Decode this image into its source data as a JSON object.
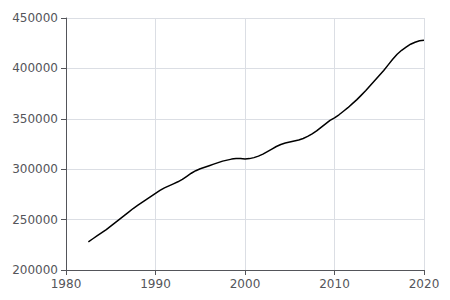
{
  "chart_data": {
    "type": "line",
    "x": [
      1982.5,
      1983.0,
      1983.5,
      1984.0,
      1984.5,
      1985.0,
      1985.5,
      1986.0,
      1986.5,
      1987.0,
      1987.5,
      1988.0,
      1988.5,
      1989.0,
      1989.5,
      1990.0,
      1990.5,
      1991.0,
      1991.5,
      1992.0,
      1992.5,
      1993.0,
      1993.5,
      1994.0,
      1994.5,
      1995.0,
      1995.5,
      1996.0,
      1996.5,
      1997.0,
      1997.5,
      1998.0,
      1998.5,
      1999.0,
      1999.5,
      2000.0,
      2000.5,
      2001.0,
      2001.5,
      2002.0,
      2002.5,
      2003.0,
      2003.5,
      2004.0,
      2004.5,
      2005.0,
      2005.5,
      2006.0,
      2006.5,
      2007.0,
      2007.5,
      2008.0,
      2008.5,
      2009.0,
      2009.5,
      2010.0,
      2010.5,
      2011.0,
      2011.5,
      2012.0,
      2012.5,
      2013.0,
      2013.5,
      2014.0,
      2014.5,
      2015.0,
      2015.5,
      2016.0,
      2016.5,
      2017.0,
      2017.5,
      2018.0,
      2018.5,
      2019.0,
      2019.5,
      2020.0
    ],
    "values": [
      228000,
      231000,
      234000,
      237000,
      240000,
      243500,
      247000,
      250500,
      254000,
      257500,
      261000,
      264000,
      267000,
      270000,
      273000,
      276000,
      279000,
      281500,
      283500,
      285500,
      287500,
      290000,
      293000,
      296000,
      298500,
      300500,
      302000,
      303500,
      305000,
      306500,
      308000,
      309000,
      310000,
      310500,
      310500,
      310000,
      310500,
      311500,
      313000,
      315000,
      317500,
      320000,
      322500,
      324500,
      326000,
      327000,
      328000,
      329000,
      330500,
      332500,
      335000,
      338000,
      341500,
      345000,
      348500,
      351000,
      354000,
      357500,
      361000,
      365000,
      369000,
      373500,
      378000,
      383000,
      388000,
      393000,
      398000,
      403500,
      409000,
      414000,
      418000,
      421000,
      424000,
      426000,
      427500,
      428000
    ],
    "color": "#000000",
    "xlim": [
      1980,
      2020
    ],
    "xticks": [
      1980,
      1990,
      2000,
      2010,
      2020
    ],
    "ylim": [
      200000,
      450000
    ],
    "yticks": [
      200000,
      250000,
      300000,
      350000,
      400000,
      450000
    ],
    "grid": true
  }
}
